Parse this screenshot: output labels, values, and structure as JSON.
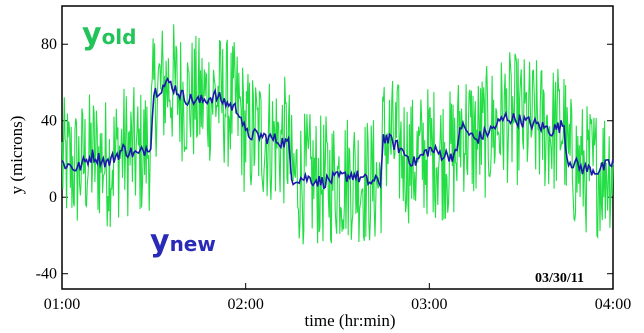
{
  "chart_data": {
    "type": "line",
    "title": "",
    "xlabel": "time (hr:min)",
    "ylabel": "y (microns)",
    "x_ticks": [
      "01:00",
      "02:00",
      "03:00",
      "04:00"
    ],
    "y_ticks": [
      -40,
      0,
      40,
      80
    ],
    "xlim": [
      "01:00",
      "04:00"
    ],
    "ylim": [
      -48,
      100
    ],
    "grid": false,
    "annotation_date": "03/30/11",
    "series": [
      {
        "name": "y_old",
        "label_main": "y",
        "label_sub": "old",
        "color": "#22dd44",
        "style": "noisy line",
        "base_series": "y_new",
        "noise_amplitude_microns": 35
      },
      {
        "name": "y_new",
        "label_main": "y",
        "label_sub": "new",
        "color": "#1a1aa8",
        "x": [
          "01:00",
          "01:05",
          "01:10",
          "01:15",
          "01:20",
          "01:25",
          "01:29",
          "01:30",
          "01:35",
          "01:40",
          "01:45",
          "01:50",
          "01:55",
          "01:58",
          "02:00",
          "02:05",
          "02:10",
          "02:14",
          "02:15",
          "02:20",
          "02:25",
          "02:30",
          "02:35",
          "02:40",
          "02:44",
          "02:45",
          "02:50",
          "02:55",
          "03:00",
          "03:05",
          "03:09",
          "03:10",
          "03:15",
          "03:20",
          "03:25",
          "03:30",
          "03:35",
          "03:40",
          "03:44",
          "03:45",
          "03:50",
          "03:55",
          "04:00"
        ],
        "y": [
          18,
          15,
          22,
          18,
          25,
          22,
          28,
          55,
          60,
          52,
          50,
          53,
          48,
          45,
          33,
          32,
          30,
          28,
          10,
          10,
          8,
          10,
          12,
          8,
          8,
          32,
          26,
          18,
          25,
          22,
          22,
          38,
          30,
          35,
          42,
          40,
          38,
          35,
          38,
          20,
          15,
          14,
          18
        ]
      }
    ]
  }
}
